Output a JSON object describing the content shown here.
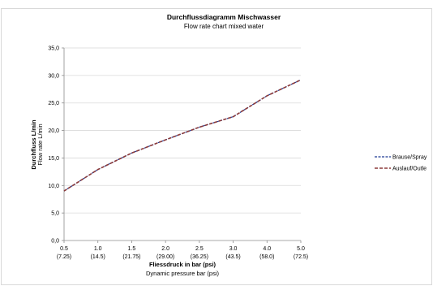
{
  "chart_data": {
    "type": "line",
    "title": "Durchflussdiagramm Mischwasser",
    "subtitle": "Flow rate chart mixed water",
    "categories": [
      "0.5",
      "1.0",
      "1.5",
      "2.0",
      "2.5",
      "3.0",
      "4.0",
      "5.0"
    ],
    "categories_secondary": [
      "(7.25)",
      "(14.5)",
      "(21.75)",
      "(29.00)",
      "(36.25)",
      "(43.5)",
      "(58.0)",
      "(72.5)"
    ],
    "xlabel": "Fliessdruck in bar (psi)",
    "xlabel_secondary": "Dynamic pressure bar (psi)",
    "ylabel": "Durchfluss L/min",
    "ylabel_secondary": "Flow rate L/min",
    "ylim": [
      0,
      35
    ],
    "yticks": [
      "0,0",
      "5,0",
      "10,0",
      "15,0",
      "20,0",
      "25,0",
      "30,0",
      "35,0"
    ],
    "grid": "horizontal",
    "legend_position": "right",
    "series": [
      {
        "name": "Brause/Spray",
        "values": [
          9.0,
          12.9,
          15.9,
          18.3,
          20.6,
          22.5,
          26.3,
          29.2
        ],
        "color": "#1f3a93",
        "style": "dashed"
      },
      {
        "name": "Auslauf/Outle",
        "values": [
          9.0,
          12.9,
          15.9,
          18.3,
          20.6,
          22.5,
          26.3,
          29.2
        ],
        "color": "#8b3a3a",
        "style": "dashed"
      }
    ]
  }
}
